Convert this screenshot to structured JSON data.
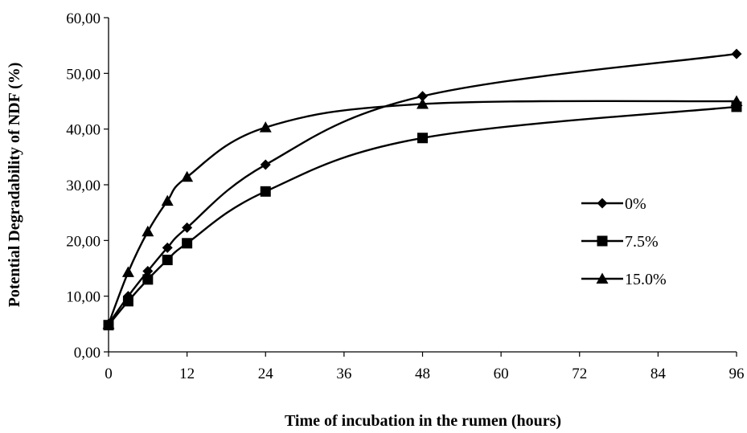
{
  "chart_data": {
    "type": "line",
    "xlabel": "Time of incubation in the rumen (hours)",
    "ylabel": "Potential Degradability of NDF (%)",
    "xlim": [
      0,
      96
    ],
    "ylim": [
      0,
      60
    ],
    "x_ticks": [
      "0",
      "12",
      "24",
      "36",
      "48",
      "60",
      "72",
      "84",
      "96"
    ],
    "y_ticks": [
      "0,00",
      "10,00",
      "20,00",
      "30,00",
      "40,00",
      "50,00",
      "60,00"
    ],
    "grid": false,
    "legend_position": "right",
    "series": [
      {
        "name": "0%",
        "marker": "diamond",
        "color": "#000000",
        "x": [
          0,
          3,
          6,
          9,
          12,
          24,
          48,
          96
        ],
        "y": [
          5.0,
          10.0,
          14.5,
          18.7,
          22.3,
          33.6,
          45.9,
          53.5
        ]
      },
      {
        "name": "7.5%",
        "marker": "square",
        "color": "#000000",
        "x": [
          0,
          3,
          6,
          9,
          12,
          24,
          48,
          96
        ],
        "y": [
          4.8,
          9.1,
          13.0,
          16.5,
          19.5,
          28.8,
          38.4,
          44.0
        ]
      },
      {
        "name": "15.0%",
        "marker": "triangle",
        "color": "#000000",
        "x": [
          0,
          3,
          6,
          9,
          12,
          24,
          48,
          96
        ],
        "y": [
          5.0,
          14.3,
          21.6,
          27.1,
          31.4,
          40.3,
          44.5,
          45.0
        ]
      }
    ]
  }
}
